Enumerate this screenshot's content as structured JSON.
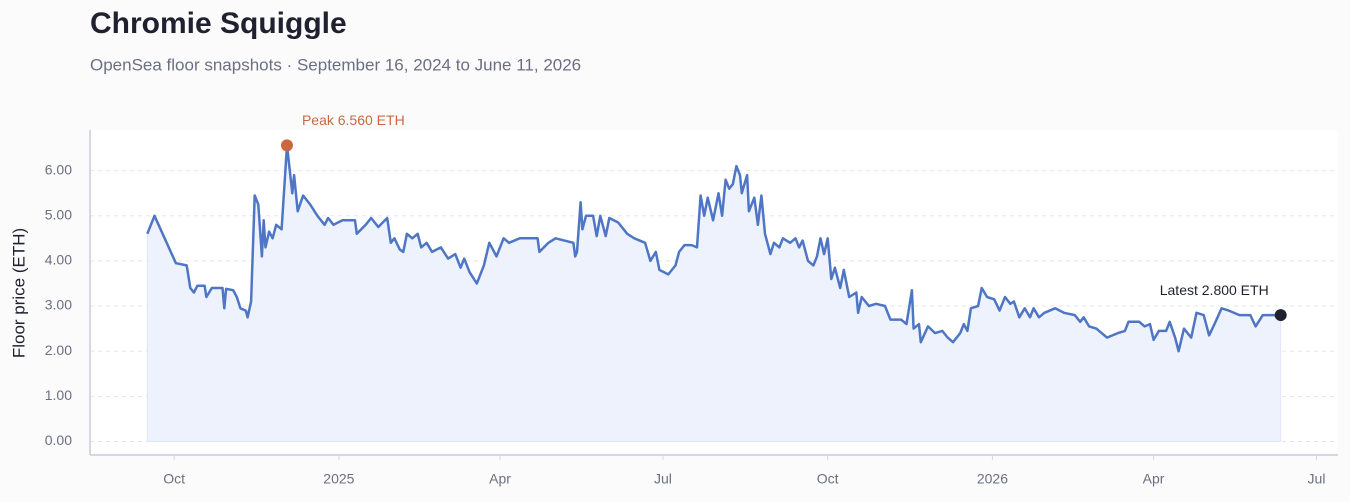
{
  "chart_data": {
    "type": "line",
    "title": "Chromie Squiggle",
    "subtitle": "OpenSea floor snapshots · September 16, 2024 to June 11, 2026",
    "y_label": "Floor price (ETH)",
    "color": "#4f76c4",
    "area_color": "#edf2fd",
    "grid": true,
    "x": [
      "2024-09-16",
      "2024-09-20",
      "2024-10-02",
      "2024-10-08",
      "2024-10-10",
      "2024-10-12",
      "2024-10-14",
      "2024-10-18",
      "2024-10-19",
      "2024-10-22",
      "2024-10-28",
      "2024-10-29",
      "2024-10-30",
      "2024-11-03",
      "2024-11-05",
      "2024-11-07",
      "2024-11-10",
      "2024-11-11",
      "2024-11-13",
      "2024-11-15",
      "2024-11-17",
      "2024-11-19",
      "2024-11-20",
      "2024-11-21",
      "2024-11-23",
      "2024-11-25",
      "2024-11-27",
      "2024-11-30",
      "2024-12-03",
      "2024-12-06",
      "2024-12-07",
      "2024-12-09",
      "2024-12-12",
      "2024-12-16",
      "2024-12-20",
      "2024-12-24",
      "2024-12-26",
      "2024-12-29",
      "2025-01-03",
      "2025-01-10",
      "2025-01-11",
      "2025-01-16",
      "2025-01-19",
      "2025-01-23",
      "2025-01-28",
      "2025-01-30",
      "2025-02-01",
      "2025-02-04",
      "2025-02-06",
      "2025-02-08",
      "2025-02-11",
      "2025-02-14",
      "2025-02-16",
      "2025-02-19",
      "2025-02-22",
      "2025-02-27",
      "2025-03-03",
      "2025-03-07",
      "2025-03-10",
      "2025-03-12",
      "2025-03-15",
      "2025-03-19",
      "2025-03-23",
      "2025-03-26",
      "2025-03-30",
      "2025-04-03",
      "2025-04-06",
      "2025-04-12",
      "2025-04-22",
      "2025-04-23",
      "2025-04-28",
      "2025-05-02",
      "2025-05-12",
      "2025-05-13",
      "2025-05-14",
      "2025-05-16",
      "2025-05-17",
      "2025-05-19",
      "2025-05-23",
      "2025-05-25",
      "2025-05-27",
      "2025-05-30",
      "2025-06-01",
      "2025-06-06",
      "2025-06-11",
      "2025-06-15",
      "2025-06-21",
      "2025-06-24",
      "2025-06-27",
      "2025-06-29",
      "2025-07-04",
      "2025-07-08",
      "2025-07-10",
      "2025-07-13",
      "2025-07-17",
      "2025-07-20",
      "2025-07-22",
      "2025-07-24",
      "2025-07-26",
      "2025-07-29",
      "2025-08-01",
      "2025-08-03",
      "2025-08-05",
      "2025-08-07",
      "2025-08-09",
      "2025-08-11",
      "2025-08-13",
      "2025-08-14",
      "2025-08-17",
      "2025-08-18",
      "2025-08-21",
      "2025-08-23",
      "2025-08-25",
      "2025-08-27",
      "2025-08-30",
      "2025-09-01",
      "2025-09-04",
      "2025-09-06",
      "2025-09-10",
      "2025-09-13",
      "2025-09-15",
      "2025-09-17",
      "2025-09-20",
      "2025-09-23",
      "2025-09-25",
      "2025-09-27",
      "2025-09-29",
      "2025-10-01",
      "2025-10-03",
      "2025-10-05",
      "2025-10-08",
      "2025-10-10",
      "2025-10-13",
      "2025-10-17",
      "2025-10-18",
      "2025-10-20",
      "2025-10-24",
      "2025-10-28",
      "2025-11-02",
      "2025-11-05",
      "2025-11-11",
      "2025-11-14",
      "2025-11-17",
      "2025-11-18",
      "2025-11-21",
      "2025-11-22",
      "2025-11-26",
      "2025-11-30",
      "2025-12-04",
      "2025-12-07",
      "2025-12-10",
      "2025-12-14",
      "2025-12-16",
      "2025-12-18",
      "2025-12-20",
      "2025-12-24",
      "2025-12-26",
      "2025-12-29",
      "2026-01-02",
      "2026-01-05",
      "2026-01-08",
      "2026-01-11",
      "2026-01-13",
      "2026-01-16",
      "2026-01-19",
      "2026-01-22",
      "2026-01-24",
      "2026-01-27",
      "2026-01-30",
      "2026-02-05",
      "2026-02-10",
      "2026-02-16",
      "2026-02-19",
      "2026-02-21",
      "2026-02-24",
      "2026-02-28",
      "2026-03-06",
      "2026-03-12",
      "2026-03-16",
      "2026-03-18",
      "2026-03-24",
      "2026-03-27",
      "2026-03-30",
      "2026-04-01",
      "2026-04-04",
      "2026-04-08",
      "2026-04-10",
      "2026-04-13",
      "2026-04-15",
      "2026-04-18",
      "2026-04-22",
      "2026-04-25",
      "2026-04-29",
      "2026-05-02",
      "2026-05-05",
      "2026-05-09",
      "2026-05-13",
      "2026-05-19",
      "2026-05-25",
      "2026-05-28",
      "2026-06-01",
      "2026-06-05",
      "2026-06-11"
    ],
    "values": [
      4.6,
      5.0,
      3.95,
      3.9,
      3.4,
      3.3,
      3.45,
      3.45,
      3.2,
      3.4,
      3.4,
      2.95,
      3.38,
      3.35,
      3.2,
      2.95,
      2.9,
      2.75,
      3.1,
      5.45,
      5.25,
      4.1,
      4.9,
      4.3,
      4.65,
      4.5,
      4.8,
      4.7,
      6.56,
      5.5,
      5.9,
      5.1,
      5.45,
      5.25,
      5.0,
      4.8,
      4.95,
      4.8,
      4.9,
      4.9,
      4.6,
      4.8,
      4.95,
      4.75,
      4.95,
      4.4,
      4.5,
      4.25,
      4.2,
      4.6,
      4.5,
      4.6,
      4.3,
      4.4,
      4.2,
      4.3,
      4.05,
      4.15,
      3.85,
      4.05,
      3.75,
      3.5,
      3.9,
      4.4,
      4.1,
      4.5,
      4.4,
      4.5,
      4.5,
      4.2,
      4.4,
      4.5,
      4.4,
      4.1,
      4.2,
      5.3,
      4.7,
      5.0,
      5.0,
      4.55,
      5.0,
      4.55,
      4.95,
      4.85,
      4.6,
      4.5,
      4.4,
      4.0,
      4.2,
      3.8,
      3.7,
      3.9,
      4.2,
      4.35,
      4.35,
      4.3,
      5.45,
      5.0,
      5.4,
      4.9,
      5.5,
      5.0,
      5.8,
      5.6,
      5.7,
      6.1,
      5.9,
      5.5,
      5.9,
      5.1,
      5.4,
      4.8,
      5.45,
      4.6,
      4.15,
      4.4,
      4.3,
      4.5,
      4.4,
      4.5,
      4.3,
      4.45,
      4.0,
      3.9,
      4.1,
      4.5,
      4.15,
      4.5,
      3.6,
      3.85,
      3.4,
      3.8,
      3.2,
      3.3,
      2.85,
      3.2,
      3.0,
      3.05,
      3.0,
      2.7,
      2.7,
      2.6,
      3.35,
      2.5,
      2.6,
      2.2,
      2.55,
      2.4,
      2.45,
      2.3,
      2.2,
      2.4,
      2.6,
      2.45,
      2.95,
      3.0,
      3.4,
      3.2,
      3.15,
      2.9,
      3.2,
      3.05,
      3.1,
      2.75,
      2.95,
      2.75,
      2.95,
      2.75,
      2.85,
      2.95,
      2.85,
      2.8,
      2.65,
      2.75,
      2.55,
      2.5,
      2.3,
      2.4,
      2.45,
      2.65,
      2.65,
      2.55,
      2.6,
      2.25,
      2.45,
      2.45,
      2.65,
      2.3,
      2.0,
      2.5,
      2.3,
      2.85,
      2.8,
      2.35,
      2.6,
      2.95,
      2.9,
      2.8,
      2.8,
      2.55,
      2.8,
      2.8,
      2.8
    ],
    "xlim": [
      "2024-08-15",
      "2026-07-13"
    ],
    "xticks": [
      {
        "value": "2024-10-01",
        "label": "Oct"
      },
      {
        "value": "2025-01-01",
        "label": "2025"
      },
      {
        "value": "2025-04-01",
        "label": "Apr"
      },
      {
        "value": "2025-07-01",
        "label": "Jul"
      },
      {
        "value": "2025-10-01",
        "label": "Oct"
      },
      {
        "value": "2026-01-01",
        "label": "2026"
      },
      {
        "value": "2026-04-01",
        "label": "Apr"
      },
      {
        "value": "2026-07-01",
        "label": "Jul"
      }
    ],
    "ylim": [
      -0.3,
      6.9
    ],
    "yticks": [
      {
        "value": 0,
        "label": "0.00"
      },
      {
        "value": 1,
        "label": "1.00"
      },
      {
        "value": 2,
        "label": "2.00"
      },
      {
        "value": 3,
        "label": "3.00"
      },
      {
        "value": 4,
        "label": "4.00"
      },
      {
        "value": 5,
        "label": "5.00"
      },
      {
        "value": 6,
        "label": "6.00"
      }
    ],
    "annotations": [
      {
        "text": "Peak 6.560 ETH",
        "color": "#c9683f"
      },
      {
        "text": "Latest 2.800 ETH",
        "color": "#1f2130"
      }
    ]
  }
}
